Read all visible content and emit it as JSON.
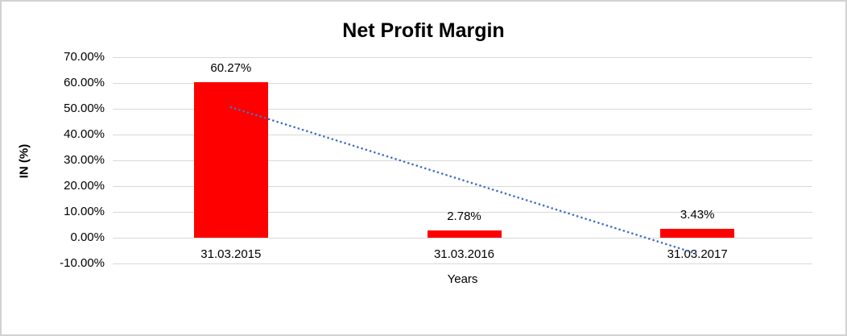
{
  "chart_data": {
    "type": "bar",
    "title": "Net Profit Margin",
    "xlabel": "Years",
    "ylabel": "IN (%)",
    "categories": [
      "31.03.2015",
      "31.03.2016",
      "31.03.2017"
    ],
    "values": [
      60.27,
      2.78,
      3.43
    ],
    "data_labels": [
      "60.27%",
      "2.78%",
      "3.43%"
    ],
    "ylim": [
      -10,
      70
    ],
    "ytick_step": 10,
    "ytick_labels": [
      "70.00%",
      "60.00%",
      "50.00%",
      "40.00%",
      "30.00%",
      "20.00%",
      "10.00%",
      "0.00%",
      "-10.00%"
    ],
    "grid": true,
    "legend": "none",
    "bar_color": "#ff0000",
    "gridline_color": "#d9d9d9",
    "text_color": "#000000",
    "frame_color": "#d2d2d2",
    "trendline": {
      "type": "linear",
      "style": "dotted",
      "color": "#4472c4",
      "start_value": 50.6,
      "end_value": -6.3
    }
  }
}
